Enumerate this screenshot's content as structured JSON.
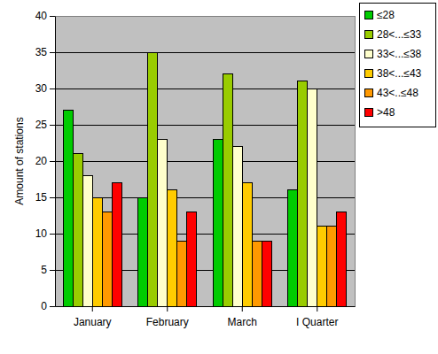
{
  "chart_data": {
    "type": "bar",
    "y_label": "Amount of stations",
    "categories": [
      "January",
      "February",
      "March",
      "I Quarter"
    ],
    "series": [
      {
        "name": "≤28",
        "color": "#00cc00",
        "values": [
          27,
          15,
          23,
          16
        ]
      },
      {
        "name": "28<...≤33",
        "color": "#99cc00",
        "values": [
          21,
          35,
          32,
          31
        ]
      },
      {
        "name": "33<...≤38",
        "color": "#ffffcc",
        "values": [
          18,
          23,
          22,
          30
        ]
      },
      {
        "name": "38<...≤43",
        "color": "#ffcc00",
        "values": [
          15,
          16,
          17,
          11
        ]
      },
      {
        "name": "43<..≤48",
        "color": "#ff9900",
        "values": [
          13,
          9,
          9,
          11
        ]
      },
      {
        "name": ">48",
        "color": "#ff0000",
        "values": [
          17,
          13,
          9,
          13
        ]
      }
    ],
    "ylim": [
      0,
      40
    ],
    "yticks": [
      0,
      5,
      10,
      15,
      20,
      25,
      30,
      35,
      40
    ],
    "grid": true,
    "legend": "top-right"
  }
}
